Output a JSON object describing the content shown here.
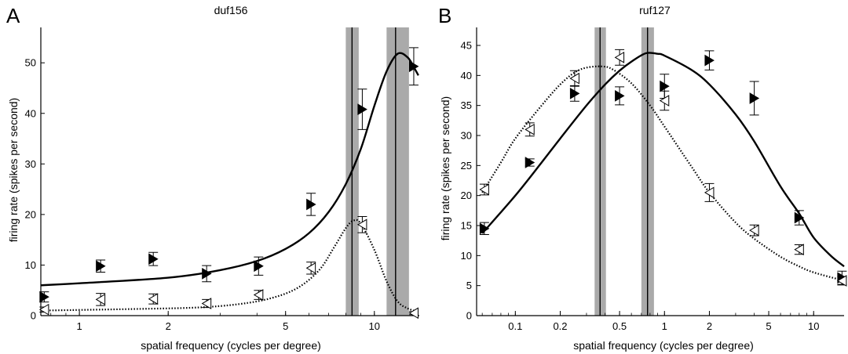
{
  "chart_data": [
    {
      "type": "line",
      "panel_label": "A",
      "title": "duf156",
      "xlabel": "spatial frequency (cycles per degree)",
      "ylabel": "firing rate (spikes per second)",
      "xscale": "log",
      "xlim": [
        0.74,
        14.2
      ],
      "ylim": [
        0,
        57
      ],
      "xticks": [
        1,
        2,
        5,
        10
      ],
      "yticks": [
        0,
        10,
        20,
        30,
        40,
        50
      ],
      "grid": false,
      "series": [
        {
          "marker": "filled-right-triangle",
          "points": [
            {
              "x": 0.76,
              "y": 3.7,
              "err": 1.0
            },
            {
              "x": 1.18,
              "y": 9.8,
              "err": 1.2
            },
            {
              "x": 1.78,
              "y": 11.2,
              "err": 1.3
            },
            {
              "x": 2.7,
              "y": 8.3,
              "err": 1.6
            },
            {
              "x": 4.05,
              "y": 9.8,
              "err": 1.8
            },
            {
              "x": 6.1,
              "y": 22.0,
              "err": 2.2
            },
            {
              "x": 9.1,
              "y": 40.8,
              "err": 4.0
            },
            {
              "x": 13.6,
              "y": 49.3,
              "err": 3.7
            }
          ],
          "fit": [
            [
              0.74,
              6.0
            ],
            [
              1.0,
              6.4
            ],
            [
              2.0,
              7.5
            ],
            [
              3.0,
              9.0
            ],
            [
              4.0,
              10.8
            ],
            [
              5.0,
              13.2
            ],
            [
              6.0,
              16.3
            ],
            [
              7.0,
              20.5
            ],
            [
              8.0,
              26.0
            ],
            [
              9.0,
              33.0
            ],
            [
              10.0,
              41.5
            ],
            [
              11.0,
              48.3
            ],
            [
              12.0,
              51.8
            ],
            [
              13.0,
              51.0
            ],
            [
              13.8,
              48.5
            ],
            [
              14.1,
              47.5
            ]
          ],
          "peak_x": 11.8,
          "peak_band": [
            11.0,
            13.1
          ]
        },
        {
          "marker": "open-left-triangle",
          "points": [
            {
              "x": 0.76,
              "y": 1.2,
              "err": 0.5
            },
            {
              "x": 1.18,
              "y": 3.2,
              "err": 1.2
            },
            {
              "x": 1.78,
              "y": 3.3,
              "err": 1.0
            },
            {
              "x": 2.7,
              "y": 2.4,
              "err": 0.8
            },
            {
              "x": 4.05,
              "y": 4.1,
              "err": 0.9
            },
            {
              "x": 6.1,
              "y": 9.4,
              "err": 1.2
            },
            {
              "x": 9.1,
              "y": 18.0,
              "err": 1.6
            },
            {
              "x": 13.6,
              "y": 0.5,
              "err": 0.3
            }
          ],
          "fit": [
            [
              0.74,
              1.0
            ],
            [
              1.5,
              1.3
            ],
            [
              2.5,
              1.6
            ],
            [
              3.5,
              2.3
            ],
            [
              4.5,
              3.5
            ],
            [
              5.5,
              5.5
            ],
            [
              6.5,
              9.0
            ],
            [
              7.3,
              13.5
            ],
            [
              8.0,
              17.3
            ],
            [
              8.5,
              18.8
            ],
            [
              9.0,
              18.2
            ],
            [
              10.0,
              13.0
            ],
            [
              11.0,
              6.8
            ],
            [
              12.0,
              2.8
            ],
            [
              13.0,
              1.4
            ],
            [
              14.0,
              0.8
            ]
          ],
          "peak_x": 8.4,
          "peak_band": [
            8.0,
            8.85
          ]
        }
      ]
    },
    {
      "type": "line",
      "panel_label": "B",
      "title": "ruf127",
      "xlabel": "spatial frequency (cycles per degree)",
      "ylabel": "firing rate (spikes per second)",
      "xscale": "log",
      "xlim": [
        0.055,
        16
      ],
      "ylim": [
        0,
        48
      ],
      "xticks": [
        0.1,
        0.2,
        0.5,
        1,
        2,
        5,
        10
      ],
      "xtick_labels": [
        "0.1",
        "0.2",
        "0.5",
        "1",
        "2",
        "5",
        "10"
      ],
      "yticks": [
        0,
        5,
        10,
        15,
        20,
        25,
        30,
        35,
        40,
        45
      ],
      "grid": false,
      "series": [
        {
          "marker": "filled-right-triangle",
          "points": [
            {
              "x": 0.062,
              "y": 14.5,
              "err": 1.0
            },
            {
              "x": 0.125,
              "y": 25.5,
              "err": 0.6
            },
            {
              "x": 0.25,
              "y": 37.0,
              "err": 1.3
            },
            {
              "x": 0.5,
              "y": 36.6,
              "err": 1.5
            },
            {
              "x": 1.0,
              "y": 38.2,
              "err": 2.0
            },
            {
              "x": 2.0,
              "y": 42.5,
              "err": 1.6
            },
            {
              "x": 4.0,
              "y": 36.2,
              "err": 2.8
            },
            {
              "x": 8.0,
              "y": 16.3,
              "err": 1.2
            },
            {
              "x": 15.5,
              "y": 6.3,
              "err": 1.1
            }
          ],
          "fit": [
            [
              0.06,
              13.7
            ],
            [
              0.1,
              20.0
            ],
            [
              0.15,
              25.5
            ],
            [
              0.2,
              29.5
            ],
            [
              0.3,
              35.0
            ],
            [
              0.4,
              38.5
            ],
            [
              0.5,
              40.8
            ],
            [
              0.6,
              42.3
            ],
            [
              0.75,
              43.7
            ],
            [
              0.9,
              43.6
            ],
            [
              1.0,
              43.3
            ],
            [
              1.5,
              41.0
            ],
            [
              2.0,
              38.5
            ],
            [
              3.0,
              33.5
            ],
            [
              4.0,
              29.0
            ],
            [
              6.0,
              21.5
            ],
            [
              8.0,
              17.0
            ],
            [
              10.0,
              13.0
            ],
            [
              13.0,
              10.0
            ],
            [
              16.0,
              8.2
            ]
          ],
          "peak_x": 0.77,
          "peak_band": [
            0.7,
            0.85
          ]
        },
        {
          "marker": "open-left-triangle",
          "points": [
            {
              "x": 0.062,
              "y": 21.0,
              "err": 0.9
            },
            {
              "x": 0.125,
              "y": 31.0,
              "err": 1.1
            },
            {
              "x": 0.25,
              "y": 39.5,
              "err": 1.3
            },
            {
              "x": 0.5,
              "y": 43.0,
              "err": 1.3
            },
            {
              "x": 1.0,
              "y": 35.8,
              "err": 1.6
            },
            {
              "x": 2.0,
              "y": 20.5,
              "err": 1.5
            },
            {
              "x": 4.0,
              "y": 14.2,
              "err": 0.9
            },
            {
              "x": 8.0,
              "y": 11.0,
              "err": 0.8
            },
            {
              "x": 15.5,
              "y": 5.8,
              "err": 0.7
            }
          ],
          "fit": [
            [
              0.06,
              20.5
            ],
            [
              0.08,
              25.5
            ],
            [
              0.1,
              29.5
            ],
            [
              0.15,
              35.0
            ],
            [
              0.2,
              38.5
            ],
            [
              0.25,
              40.5
            ],
            [
              0.3,
              41.3
            ],
            [
              0.38,
              41.5
            ],
            [
              0.45,
              41.0
            ],
            [
              0.6,
              38.7
            ],
            [
              0.8,
              35.0
            ],
            [
              1.0,
              31.5
            ],
            [
              1.5,
              25.0
            ],
            [
              2.0,
              20.5
            ],
            [
              3.0,
              15.5
            ],
            [
              4.0,
              12.8
            ],
            [
              6.0,
              9.8
            ],
            [
              8.0,
              8.2
            ],
            [
              10.0,
              7.2
            ],
            [
              16.0,
              5.8
            ]
          ],
          "peak_x": 0.37,
          "peak_band": [
            0.34,
            0.405
          ]
        }
      ]
    }
  ]
}
